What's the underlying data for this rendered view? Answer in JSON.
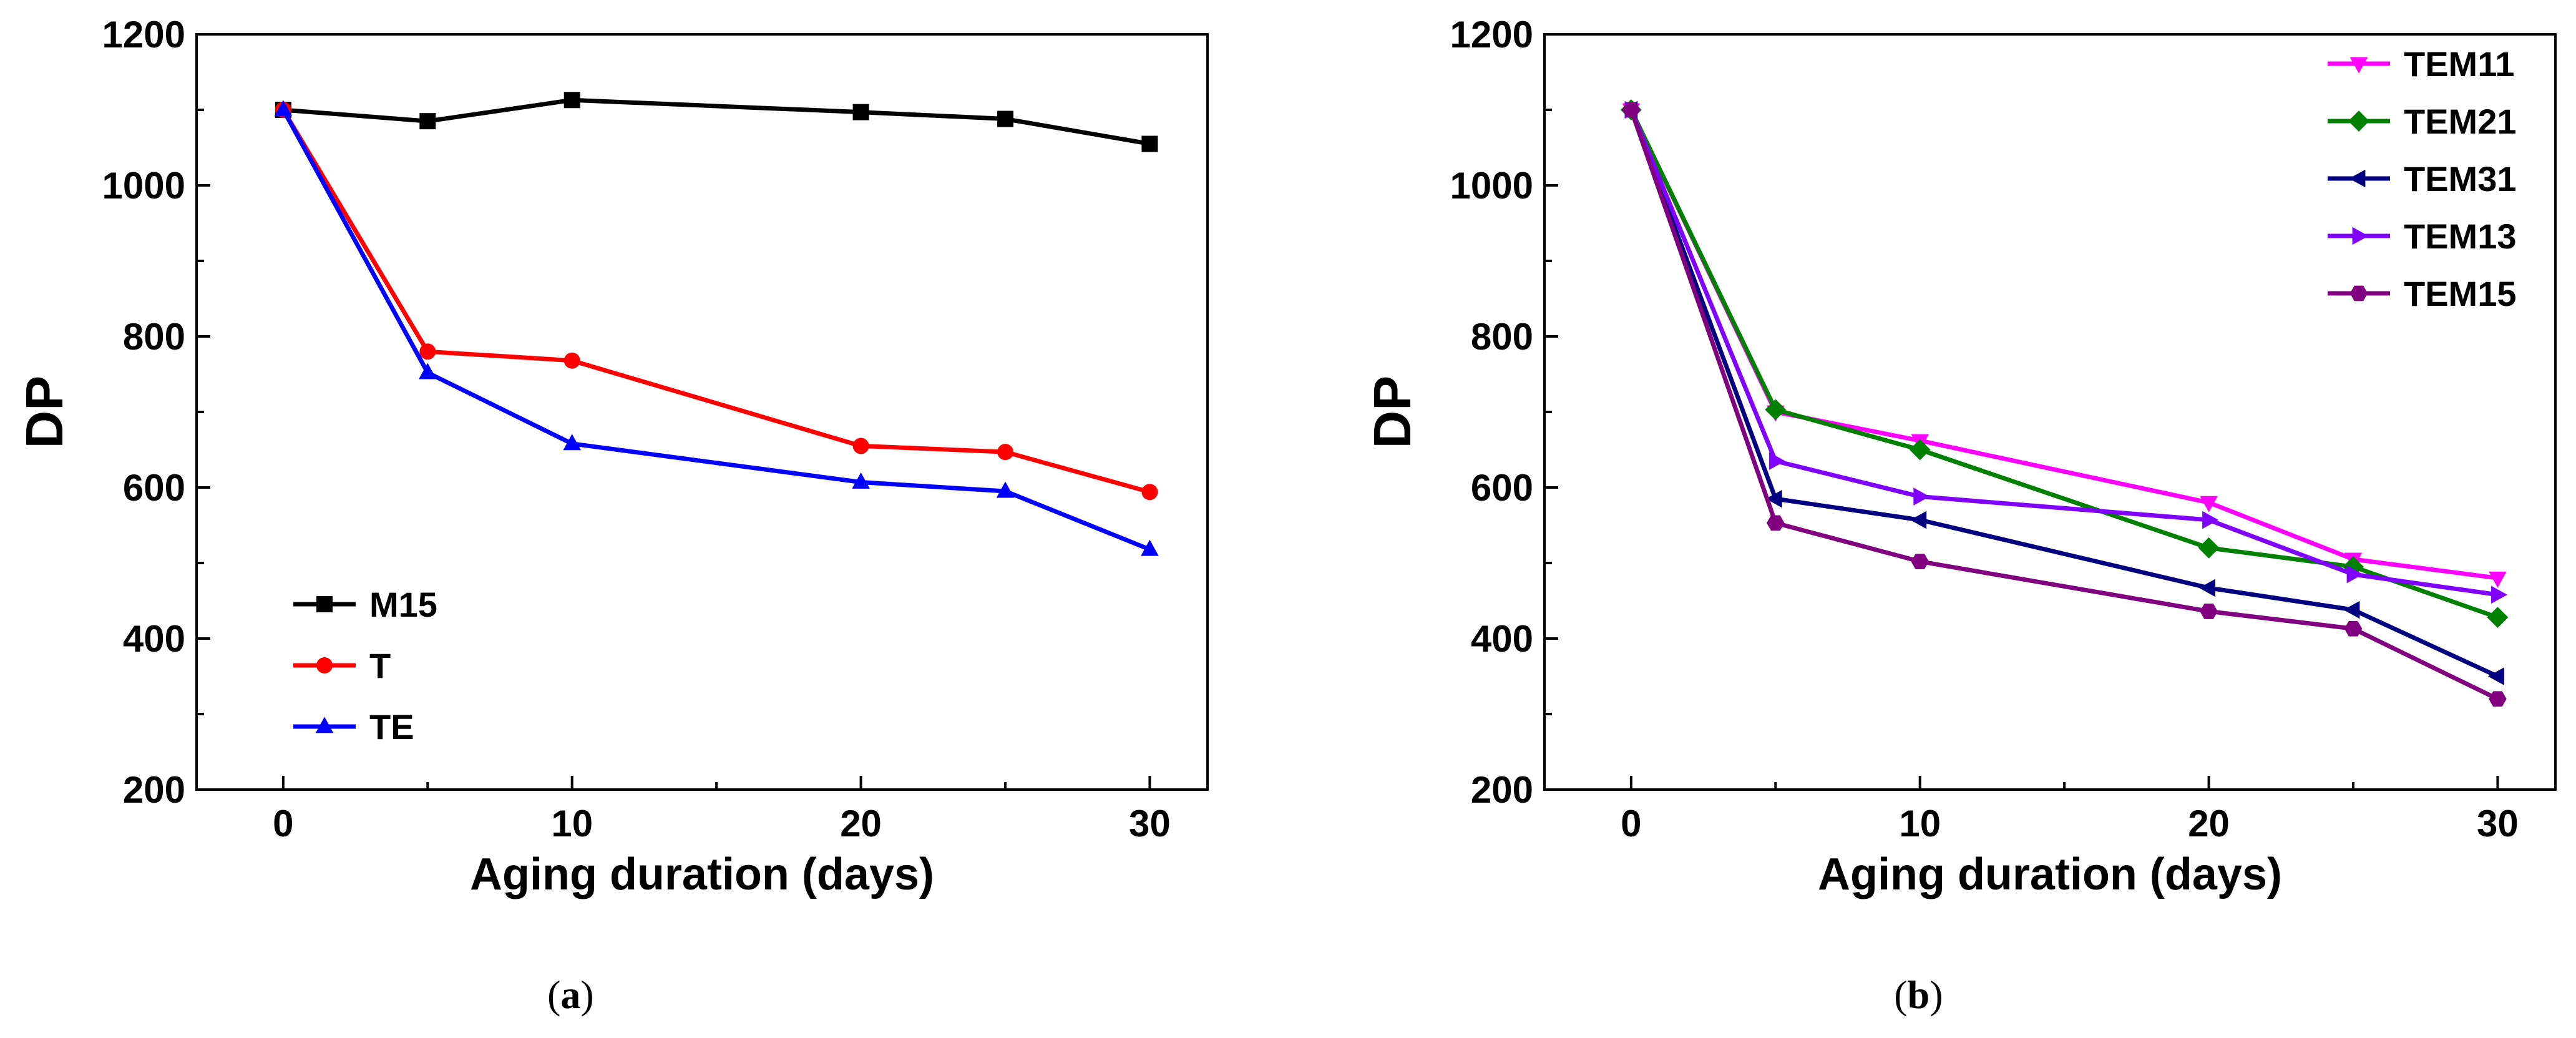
{
  "chart_data": [
    {
      "type": "line",
      "caption_open": "(",
      "caption_letter": "a",
      "caption_close": ")",
      "xlabel": "Aging duration (days)",
      "ylabel": "DP",
      "xlim": [
        -3,
        32
      ],
      "ylim": [
        200,
        1200
      ],
      "xticks": [
        0,
        10,
        20,
        30
      ],
      "yticks": [
        200,
        400,
        600,
        800,
        1000,
        1200
      ],
      "x": [
        0,
        5,
        10,
        20,
        25,
        30
      ],
      "legend_position": "bottom-left",
      "series": [
        {
          "name": "M15",
          "values": [
            1100,
            1085,
            1113,
            1097,
            1088,
            1055
          ],
          "color": "#000000",
          "marker": "square"
        },
        {
          "name": "T",
          "values": [
            1100,
            780,
            768,
            655,
            647,
            594
          ],
          "color": "#ff0000",
          "marker": "circle"
        },
        {
          "name": "TE",
          "values": [
            1100,
            752,
            658,
            607,
            595,
            518
          ],
          "color": "#0000ff",
          "marker": "triangle-up"
        }
      ]
    },
    {
      "type": "line",
      "caption_open": "(",
      "caption_letter": "b",
      "caption_close": ")",
      "xlabel": "Aging duration (days)",
      "ylabel": "DP",
      "xlim": [
        -3,
        32
      ],
      "ylim": [
        200,
        1200
      ],
      "xticks": [
        0,
        10,
        20,
        30
      ],
      "yticks": [
        200,
        400,
        600,
        800,
        1000,
        1200
      ],
      "x": [
        0,
        5,
        10,
        20,
        25,
        30
      ],
      "legend_position": "top-right",
      "series": [
        {
          "name": "TEM11",
          "values": [
            1100,
            700,
            662,
            580,
            505,
            480
          ],
          "color": "#ff00ff",
          "marker": "triangle-down"
        },
        {
          "name": "TEM21",
          "values": [
            1100,
            703,
            650,
            520,
            495,
            428
          ],
          "color": "#008000",
          "marker": "diamond"
        },
        {
          "name": "TEM31",
          "values": [
            1100,
            585,
            557,
            467,
            438,
            350
          ],
          "color": "#000080",
          "marker": "triangle-left"
        },
        {
          "name": "TEM13",
          "values": [
            1100,
            635,
            588,
            557,
            485,
            458
          ],
          "color": "#8000ff",
          "marker": "triangle-right"
        },
        {
          "name": "TEM15",
          "values": [
            1100,
            553,
            502,
            436,
            413,
            320
          ],
          "color": "#800080",
          "marker": "hexagon"
        }
      ]
    }
  ]
}
